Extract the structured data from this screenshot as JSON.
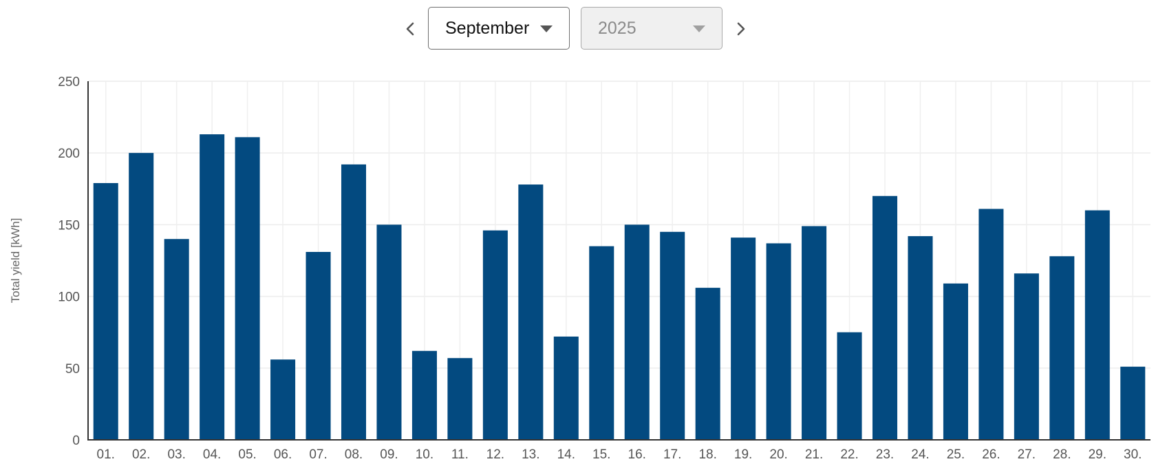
{
  "controls": {
    "prev_icon": "chevron-left-icon",
    "next_icon": "chevron-right-icon",
    "month": "September",
    "year": "2025"
  },
  "chart_data": {
    "type": "bar",
    "ylabel": "Total yield [kWh]",
    "ylim": [
      0,
      250
    ],
    "yticks": [
      0,
      50,
      100,
      150,
      200,
      250
    ],
    "grid": true,
    "bar_color": "#034a80",
    "categories": [
      "01.",
      "02.",
      "03.",
      "04.",
      "05.",
      "06.",
      "07.",
      "08.",
      "09.",
      "10.",
      "11.",
      "12.",
      "13.",
      "14.",
      "15.",
      "16.",
      "17.",
      "18.",
      "19.",
      "20.",
      "21.",
      "22.",
      "23.",
      "24.",
      "25.",
      "26.",
      "27.",
      "28.",
      "29.",
      "30."
    ],
    "values": [
      179,
      200,
      140,
      213,
      211,
      56,
      131,
      192,
      150,
      62,
      57,
      146,
      178,
      72,
      135,
      150,
      145,
      106,
      141,
      137,
      149,
      75,
      170,
      142,
      109,
      161,
      116,
      128,
      160,
      51
    ]
  }
}
